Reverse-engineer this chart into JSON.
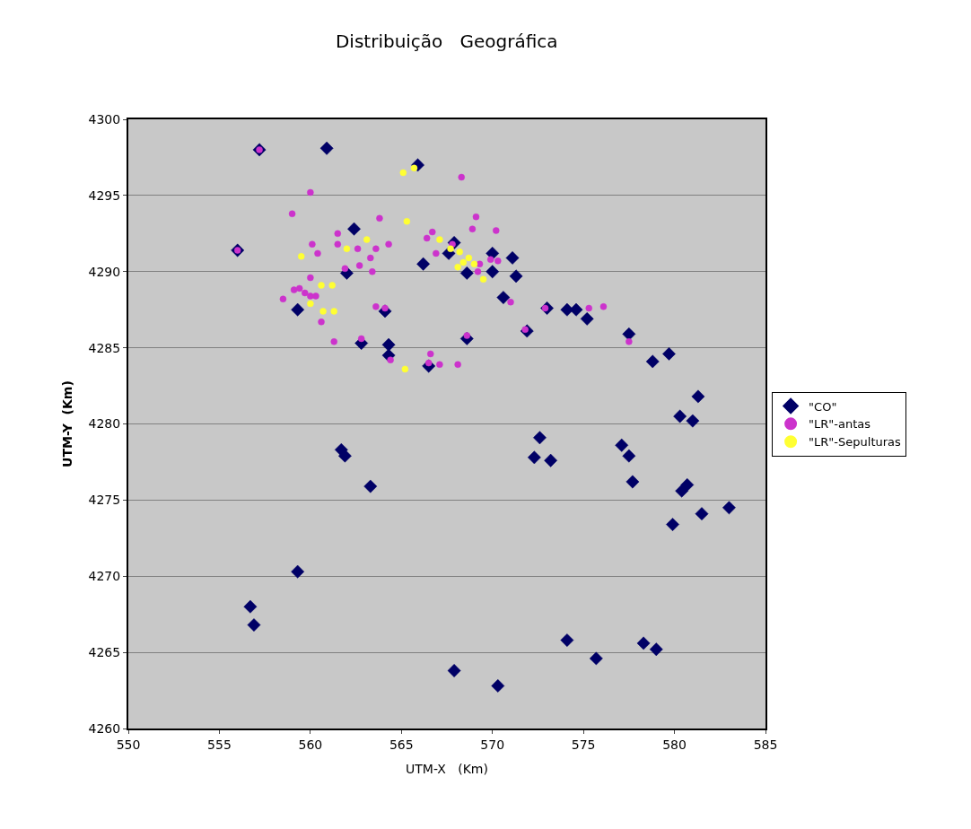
{
  "chart_data": {
    "type": "scatter",
    "title": "Distribuição   Geográfica",
    "xlabel": "UTM-X   (Km)",
    "ylabel": "UTM-Y  (Km)",
    "xlim": [
      550,
      585
    ],
    "xticks": [
      550,
      555,
      560,
      565,
      570,
      575,
      580,
      585
    ],
    "ylim": [
      4260,
      4300
    ],
    "yticks": [
      4260,
      4265,
      4270,
      4275,
      4280,
      4285,
      4290,
      4295,
      4300
    ],
    "grid": "y",
    "legend": "right",
    "series": [
      {
        "name": "\"CO\"",
        "color": "#000066",
        "marker": "diamond",
        "x": [
          557.2,
          560.9,
          565.9,
          562.4,
          566.2,
          567.6,
          567.9,
          568.6,
          570.0,
          570.0,
          571.1,
          571.3,
          570.6,
          564.1,
          562.0,
          562.8,
          564.3,
          564.3,
          566.5,
          568.6,
          571.9,
          573.0,
          556.0,
          559.3,
          574.1,
          574.6,
          575.2,
          577.5,
          578.8,
          579.7,
          581.3,
          580.3,
          581.0,
          572.6,
          572.3,
          573.2,
          577.1,
          577.5,
          577.7,
          580.4,
          580.7,
          581.5,
          583.0,
          579.9,
          561.7,
          561.9,
          563.3,
          559.3,
          556.7,
          556.9,
          567.8,
          567.9,
          570.3,
          574.1,
          575.7,
          578.3,
          579.0
        ],
        "values": [
          4298.0,
          4298.1,
          4297.0,
          4292.8,
          4290.5,
          4291.2,
          4291.9,
          4289.9,
          4291.2,
          4290.0,
          4290.9,
          4289.7,
          4288.3,
          4287.4,
          4289.9,
          4285.3,
          4285.2,
          4284.5,
          4283.8,
          4285.6,
          4286.1,
          4287.6,
          4291.4,
          4287.5,
          4287.5,
          4287.5,
          4286.9,
          4285.9,
          4284.1,
          4284.6,
          4281.8,
          4280.5,
          4280.2,
          4279.1,
          4277.8,
          4277.6,
          4278.6,
          4277.9,
          4276.2,
          4275.6,
          4276.0,
          4274.1,
          4274.5,
          4273.4,
          4278.3,
          4277.9,
          4275.9,
          4270.3,
          4268.0,
          4266.8,
          null,
          4263.8,
          4262.8,
          4265.8,
          4264.6,
          4265.6,
          4265.2
        ]
      },
      {
        "name": "\"LR\"-antas",
        "color": "#cc33cc",
        "marker": "circle",
        "x": [
          557.2,
          560.0,
          559.0,
          556.0,
          560.1,
          560.4,
          561.5,
          561.5,
          560.0,
          559.1,
          559.4,
          559.7,
          560.0,
          560.3,
          558.5,
          560.6,
          561.3,
          568.3,
          563.8,
          569.1,
          570.2,
          568.9,
          566.7,
          566.4,
          566.9,
          567.8,
          569.3,
          569.9,
          570.3,
          569.2,
          563.6,
          564.3,
          562.6,
          563.3,
          562.7,
          563.4,
          561.9,
          563.6,
          564.1,
          562.8,
          564.4,
          566.6,
          566.5,
          567.1,
          568.1,
          568.6,
          571.0,
          572.9,
          571.8,
          575.3,
          576.1,
          577.5
        ],
        "values": [
          4298.0,
          4295.2,
          4293.8,
          4291.4,
          4291.8,
          4291.2,
          4292.5,
          4291.8,
          4289.6,
          4288.8,
          4288.9,
          4288.6,
          4288.4,
          4288.4,
          4288.2,
          4286.7,
          4285.4,
          4296.2,
          4293.5,
          4293.6,
          4292.7,
          4292.8,
          4292.6,
          4292.2,
          4291.2,
          4291.8,
          4290.5,
          4290.8,
          4290.7,
          4290.0,
          4291.5,
          4291.8,
          4291.5,
          4290.9,
          4290.4,
          4290.0,
          4290.2,
          4287.7,
          4287.6,
          4285.6,
          4284.2,
          4284.6,
          4284.0,
          4283.9,
          4283.9,
          4285.8,
          4288.0,
          4287.6,
          4286.2,
          4287.6,
          4287.7,
          4285.4
        ]
      },
      {
        "name": "\"LR\"-Sepulturas",
        "color": "#ffff33",
        "marker": "circle",
        "x": [
          559.5,
          560.6,
          561.2,
          560.0,
          560.7,
          561.3,
          565.1,
          565.7,
          565.3,
          563.1,
          562.0,
          567.1,
          567.7,
          568.2,
          568.7,
          568.4,
          568.1,
          569.0,
          569.5,
          565.2
        ],
        "values": [
          4291.0,
          4289.1,
          4289.1,
          4287.9,
          4287.4,
          4287.4,
          4296.5,
          4296.8,
          4293.3,
          4292.1,
          4291.5,
          4292.1,
          4291.5,
          4291.3,
          4290.9,
          4290.6,
          4290.3,
          4290.5,
          4289.5,
          4283.6
        ]
      }
    ]
  }
}
